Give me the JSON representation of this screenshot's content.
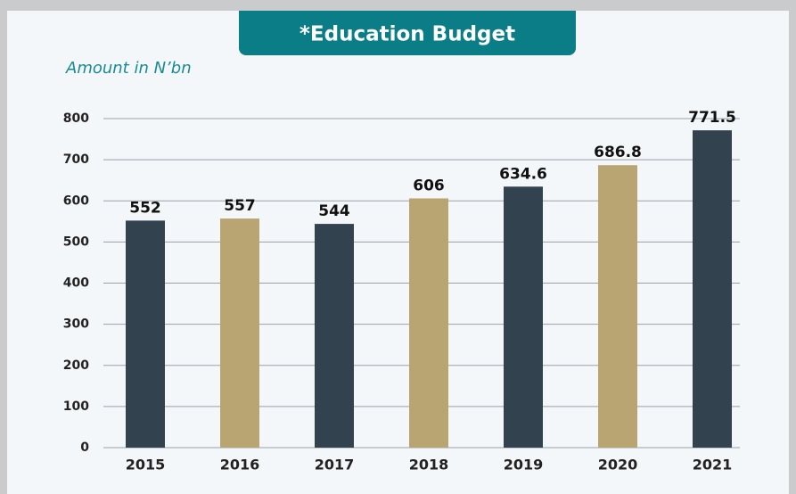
{
  "chart_data": {
    "type": "bar",
    "title": "*Education Budget",
    "subtitle": "Amount in N’bn",
    "categories": [
      "2015",
      "2016",
      "2017",
      "2018",
      "2019",
      "2020",
      "2021"
    ],
    "values": [
      552,
      557,
      544,
      606,
      634.6,
      686.8,
      771.5
    ],
    "colors": [
      "#33424f",
      "#b9a571",
      "#33424f",
      "#b9a571",
      "#33424f",
      "#b9a571",
      "#33424f"
    ],
    "ylim": [
      0,
      800
    ],
    "yticks": [
      0,
      100,
      200,
      300,
      400,
      500,
      600,
      700,
      800
    ],
    "grid": true
  }
}
